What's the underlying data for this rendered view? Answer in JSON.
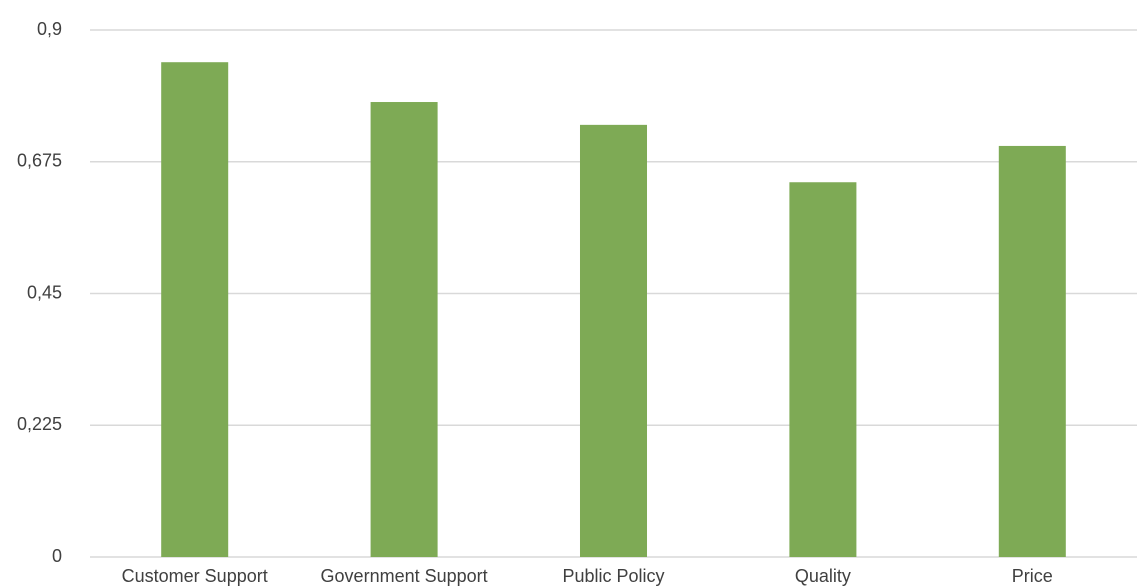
{
  "chart_data": {
    "type": "bar",
    "categories": [
      "Customer Support",
      "Government Support",
      "Public Policy",
      "Quality",
      "Price"
    ],
    "values": [
      0.845,
      0.777,
      0.738,
      0.64,
      0.702
    ],
    "color": "#7eaa55",
    "ylim": [
      0,
      0.9
    ],
    "yticks": [
      0,
      {
        "value": 0.225,
        "label": "0,225"
      },
      {
        "value": 0.45,
        "label": "0,45"
      },
      {
        "value": 0.675,
        "label": "0,675"
      },
      {
        "value": 0.9,
        "label": "0,9"
      }
    ],
    "grid": true
  }
}
